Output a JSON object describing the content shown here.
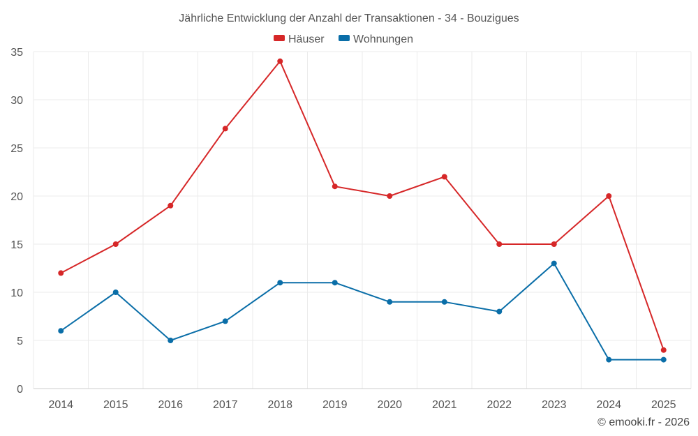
{
  "chart_data": {
    "type": "line",
    "title": "Jährliche Entwicklung der Anzahl der Transaktionen - 34 - Bouzigues",
    "categories": [
      "2014",
      "2015",
      "2016",
      "2017",
      "2018",
      "2019",
      "2020",
      "2021",
      "2022",
      "2023",
      "2024",
      "2025"
    ],
    "series": [
      {
        "name": "Häuser",
        "color": "#d62728",
        "values": [
          12,
          15,
          19,
          27,
          34,
          21,
          20,
          22,
          15,
          15,
          20,
          4
        ]
      },
      {
        "name": "Wohnungen",
        "color": "#0a6ea8",
        "values": [
          6,
          10,
          5,
          7,
          11,
          11,
          9,
          9,
          8,
          13,
          3,
          3
        ]
      }
    ],
    "ylim": [
      0,
      35
    ],
    "yticks": [
      0,
      5,
      10,
      15,
      20,
      25,
      30,
      35
    ],
    "xlabel": "",
    "ylabel": "",
    "grid": true,
    "legend": "top-center"
  },
  "credit": "© emooki.fr - 2026"
}
